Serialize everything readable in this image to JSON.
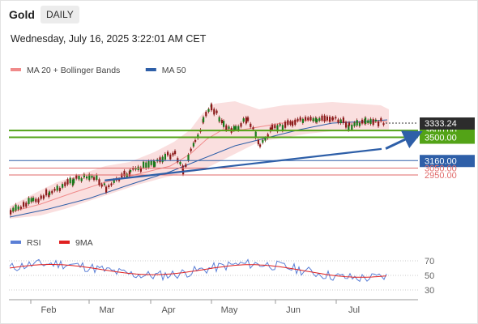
{
  "header": {
    "title": "Gold",
    "period": "DAILY"
  },
  "timestamp": "Wednesday, July 16, 2025 3:22:01 AM CET",
  "colors": {
    "support": "#2e5fa8",
    "resistance": "#53a317",
    "minor": "#e06a6a",
    "rsi": "#5b7fd6",
    "rsi_ma": "#e02020",
    "candle": "#8b1a1a",
    "band": "#f7c9c9"
  },
  "chart_data": [
    {
      "type": "line",
      "legend": [
        "MA 20 + Bollinger Bands",
        "MA 50"
      ],
      "legend_colors": [
        "#f08a8a",
        "#2e5fa8"
      ],
      "x_categories": [
        "Feb",
        "Mar",
        "Apr",
        "May",
        "Jun",
        "Jul"
      ],
      "current_price": "3333.24",
      "levels": [
        {
          "label": "3600.00",
          "value": 3600,
          "kind": "resistance"
        },
        {
          "label": "3500.00",
          "value": 3500,
          "kind": "resistance"
        },
        {
          "label": "3160.00",
          "value": 3160,
          "kind": "support"
        },
        {
          "label": "3050.00",
          "value": 3050,
          "kind": "minor"
        },
        {
          "label": "2950.00",
          "value": 2950,
          "kind": "minor"
        }
      ],
      "trendline": {
        "from": [
          "2025-03-02",
          2870
        ],
        "to": [
          "2025-07-14",
          3330
        ]
      },
      "projection": {
        "from": [
          "2025-07-16",
          3335
        ],
        "to": [
          "2025-08-01",
          3600
        ]
      }
    },
    {
      "type": "line",
      "legend": [
        "RSI",
        "9MA"
      ],
      "legend_colors": [
        "#5b7fd6",
        "#e02020"
      ],
      "y_ticks": [
        "70",
        "50",
        "30"
      ],
      "ylim": [
        20,
        80
      ]
    }
  ]
}
